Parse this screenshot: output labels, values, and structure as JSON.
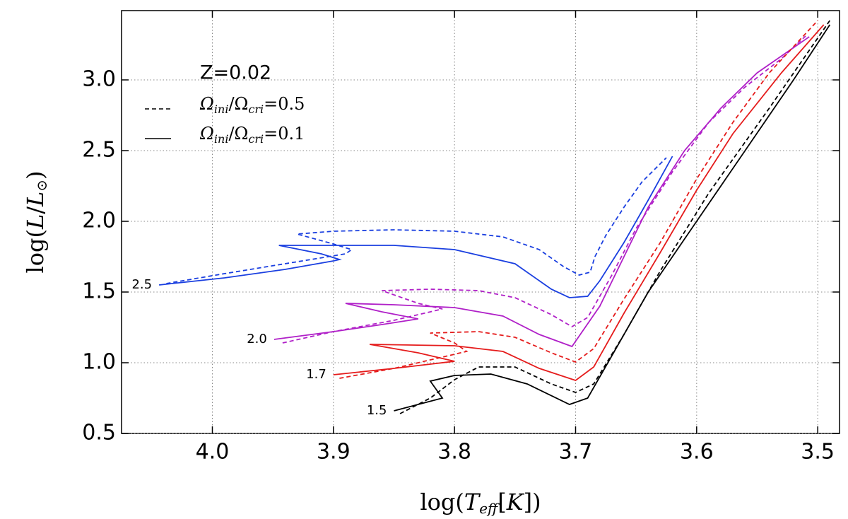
{
  "chart_data": {
    "type": "line",
    "xlabel": [
      "log(",
      "T",
      "eff",
      "[",
      "K",
      "])"
    ],
    "ylabel": [
      "log(",
      "L",
      "/",
      "L",
      "⊙",
      ")"
    ],
    "xlim": [
      4.075,
      3.482
    ],
    "ylim": [
      0.5,
      3.49
    ],
    "xticks": [
      {
        "value": 4.0,
        "label": "4.0"
      },
      3.9,
      3.8,
      3.7,
      3.6,
      3.5
    ],
    "yticks": [
      0.5,
      {
        "value": 1.0,
        "label": "1.0"
      },
      1.5,
      {
        "value": 2.0,
        "label": "2.0"
      },
      2.5,
      {
        "value": 3.0,
        "label": "3.0"
      }
    ],
    "grid": true,
    "legend": {
      "title": "Z=0.02",
      "entries": [
        {
          "label": [
            "Ω",
            "ini",
            "/Ω",
            "cri",
            "=0.5"
          ],
          "dash": "dashed"
        },
        {
          "label": [
            "Ω",
            "ini",
            "/Ω",
            "cri",
            "=0.1"
          ],
          "dash": "solid"
        }
      ]
    },
    "tracks": [
      {
        "label": "2.5",
        "color": "#1a3fe0",
        "series": [
          {
            "dash": "dashed",
            "x": [
              4.038,
              3.99,
              3.94,
              3.89,
              3.885,
              3.9,
              3.93,
              3.9,
              3.85,
              3.8,
              3.76,
              3.73,
              3.71,
              3.697,
              3.688,
              3.684,
              3.675,
              3.66,
              3.645,
              3.625
            ],
            "y": [
              1.56,
              1.63,
              1.7,
              1.77,
              1.8,
              1.84,
              1.91,
              1.93,
              1.94,
              1.93,
              1.89,
              1.8,
              1.68,
              1.62,
              1.64,
              1.75,
              1.9,
              2.1,
              2.28,
              2.45
            ]
          },
          {
            "dash": "solid",
            "x": [
              4.044,
              3.99,
              3.94,
              3.9,
              3.895,
              3.91,
              3.945,
              3.93,
              3.85,
              3.8,
              3.75,
              3.72,
              3.705,
              3.69,
              3.68,
              3.66,
              3.64,
              3.62
            ],
            "y": [
              1.55,
              1.6,
              1.66,
              1.72,
              1.73,
              1.77,
              1.83,
              1.83,
              1.83,
              1.8,
              1.7,
              1.52,
              1.46,
              1.47,
              1.58,
              1.85,
              2.15,
              2.46
            ]
          }
        ]
      },
      {
        "label": "2.0",
        "color": "#b020c8",
        "series": [
          {
            "dash": "dashed",
            "x": [
              3.942,
              3.9,
              3.85,
              3.81,
              3.83,
              3.86,
              3.82,
              3.78,
              3.75,
              3.72,
              3.703,
              3.69,
              3.67,
              3.65,
              3.62,
              3.59,
              3.56,
              3.53,
              3.51
            ],
            "y": [
              1.14,
              1.22,
              1.3,
              1.38,
              1.42,
              1.51,
              1.52,
              1.51,
              1.46,
              1.34,
              1.255,
              1.32,
              1.62,
              1.95,
              2.35,
              2.7,
              2.95,
              3.15,
              3.31
            ]
          },
          {
            "dash": "solid",
            "x": [
              3.949,
              3.9,
              3.86,
              3.83,
              3.86,
              3.89,
              3.85,
              3.8,
              3.76,
              3.73,
              3.703,
              3.68,
              3.66,
              3.64,
              3.61,
              3.58,
              3.55,
              3.507
            ],
            "y": [
              1.165,
              1.22,
              1.27,
              1.31,
              1.36,
              1.42,
              1.41,
              1.39,
              1.33,
              1.2,
              1.115,
              1.4,
              1.75,
              2.1,
              2.5,
              2.8,
              3.05,
              3.305
            ]
          }
        ]
      },
      {
        "label": "1.7",
        "color": "#e51c1c",
        "series": [
          {
            "dash": "dashed",
            "x": [
              3.895,
              3.85,
              3.79,
              3.8,
              3.82,
              3.78,
              3.75,
              3.72,
              3.7,
              3.685,
              3.66,
              3.63,
              3.6,
              3.57,
              3.54,
              3.5
            ],
            "y": [
              0.89,
              0.96,
              1.08,
              1.14,
              1.21,
              1.22,
              1.18,
              1.07,
              1.005,
              1.1,
              1.45,
              1.85,
              2.3,
              2.7,
              3.05,
              3.42
            ]
          },
          {
            "dash": "solid",
            "x": [
              3.9,
              3.85,
              3.8,
              3.83,
              3.87,
              3.8,
              3.76,
              3.73,
              3.7,
              3.685,
              3.66,
              3.63,
              3.6,
              3.57,
              3.53,
              3.495
            ],
            "y": [
              0.915,
              0.96,
              1.01,
              1.07,
              1.13,
              1.12,
              1.08,
              0.96,
              0.875,
              0.97,
              1.35,
              1.78,
              2.22,
              2.62,
              3.05,
              3.39
            ]
          }
        ]
      },
      {
        "label": "1.5",
        "color": "#000000",
        "series": [
          {
            "dash": "dashed",
            "x": [
              3.845,
              3.82,
              3.8,
              3.78,
              3.75,
              3.72,
              3.7,
              3.685,
              3.66,
              3.63,
              3.59,
              3.54,
              3.49
            ],
            "y": [
              0.64,
              0.75,
              0.88,
              0.97,
              0.97,
              0.85,
              0.79,
              0.85,
              1.2,
              1.65,
              2.2,
              2.8,
              3.42
            ]
          },
          {
            "dash": "solid",
            "x": [
              3.85,
              3.81,
              3.82,
              3.8,
              3.77,
              3.74,
              3.705,
              3.69,
              3.67,
              3.64,
              3.6,
              3.56,
              3.52,
              3.49
            ],
            "y": [
              0.66,
              0.75,
              0.87,
              0.91,
              0.92,
              0.85,
              0.705,
              0.75,
              1.05,
              1.5,
              2.0,
              2.5,
              3.0,
              3.39
            ]
          }
        ]
      }
    ]
  }
}
